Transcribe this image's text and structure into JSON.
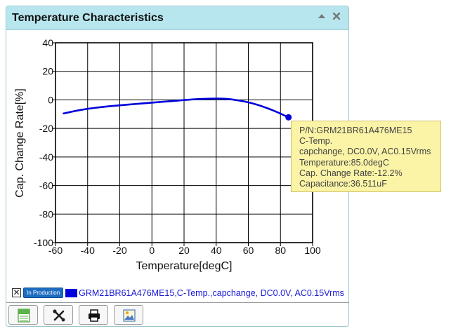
{
  "panel": {
    "title": "Temperature Characteristics",
    "icons": [
      "collapse-up-icon",
      "close-icon"
    ]
  },
  "chart_data": {
    "type": "line",
    "xlabel": "Temperature[degC]",
    "ylabel": "Cap. Change Rate[%]",
    "xlim": [
      -60,
      100
    ],
    "ylim": [
      -100,
      40
    ],
    "x_ticks": [
      -60,
      -40,
      -20,
      0,
      20,
      40,
      60,
      80,
      100
    ],
    "y_ticks": [
      40,
      20,
      0,
      -20,
      -40,
      -60,
      -80,
      -100
    ],
    "grid": true,
    "series": [
      {
        "name": "GRM21BR61A476ME15,C-Temp.,capchange, DC0.0V, AC0.15Vrms",
        "color": "#0000dd",
        "x": [
          -55,
          -45,
          -35,
          -25,
          -15,
          -5,
          5,
          15,
          25,
          35,
          45,
          55,
          65,
          75,
          85
        ],
        "y": [
          -9.5,
          -7.2,
          -5.5,
          -4.3,
          -3.3,
          -2.4,
          -1.5,
          -0.6,
          0.3,
          0.8,
          0.8,
          -0.6,
          -3.2,
          -7.2,
          -12.2
        ]
      }
    ],
    "highlight_point": {
      "x": 85,
      "y": -12.2
    }
  },
  "tooltip": {
    "lines": [
      "P/N:GRM21BR61A476ME15",
      "C-Temp.",
      "capchange, DC0.0V, AC0.15Vrms",
      "Temperature:85.0degC",
      "Cap. Change Rate:-12.2%",
      "Capacitance:36.511uF"
    ]
  },
  "legend": {
    "checkbox_label": "✕",
    "badge": "In Production",
    "series_label": "GRM21BR61A476ME15,C-Temp.,capchange, DC0.0V, AC0.15Vrms"
  },
  "toolbar": {
    "buttons": [
      "csv-export-icon",
      "tools-icon",
      "print-icon",
      "image-export-icon"
    ]
  }
}
